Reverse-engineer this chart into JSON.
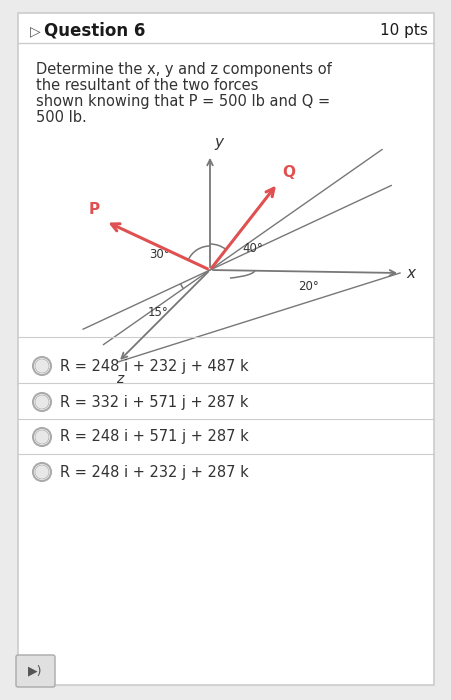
{
  "title": "Question 6",
  "pts": "10 pts",
  "problem_text": "Determine the x, y and z components of\nthe resultant of the two forces\nshown knowing that P = 500 lb and Q =\n500 lb.",
  "options": [
    "R = 248 i + 232 j + 487 k",
    "R = 332 i + 571 j + 287 k",
    "R = 248 i + 571 j + 287 k",
    "R = 248 i + 232 j + 287 k"
  ],
  "bg_color": "#ebebeb",
  "white": "#ffffff",
  "border_color": "#cccccc",
  "text_color": "#333333",
  "arrow_color": "#e05050",
  "axis_color": "#777777",
  "angle_color": "#777777",
  "fig_width": 4.51,
  "fig_height": 7.0,
  "dpi": 100
}
